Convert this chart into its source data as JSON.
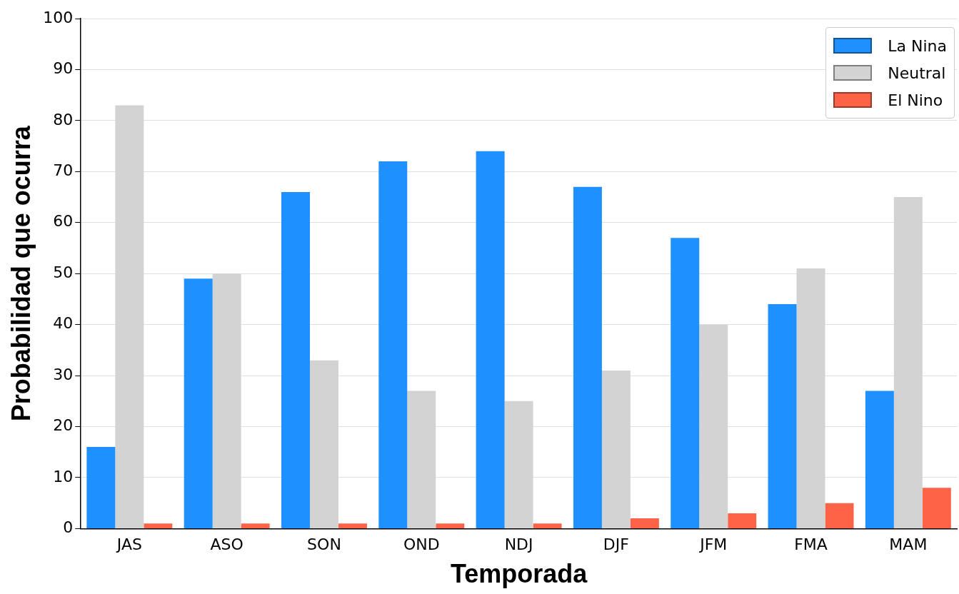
{
  "chart_data": {
    "type": "bar",
    "xlabel": "Temporada",
    "ylabel": "Probabilidad que ocurra",
    "categories": [
      "JAS",
      "ASO",
      "SON",
      "OND",
      "NDJ",
      "DJF",
      "JFM",
      "FMA",
      "MAM"
    ],
    "series": [
      {
        "name": "La Nina",
        "color": "#1e90ff",
        "values": [
          16,
          49,
          66,
          72,
          74,
          67,
          57,
          44,
          27
        ]
      },
      {
        "name": "Neutral",
        "color": "#d3d3d3",
        "values": [
          83,
          50,
          33,
          27,
          25,
          31,
          40,
          51,
          65
        ]
      },
      {
        "name": "El Nino",
        "color": "#ff6347",
        "values": [
          1,
          1,
          1,
          1,
          1,
          2,
          3,
          5,
          8
        ]
      }
    ],
    "ylim": [
      0,
      100
    ],
    "yticks": [
      0,
      10,
      20,
      30,
      40,
      50,
      60,
      70,
      80,
      90,
      100
    ],
    "grid": "y",
    "legend": "top right"
  }
}
